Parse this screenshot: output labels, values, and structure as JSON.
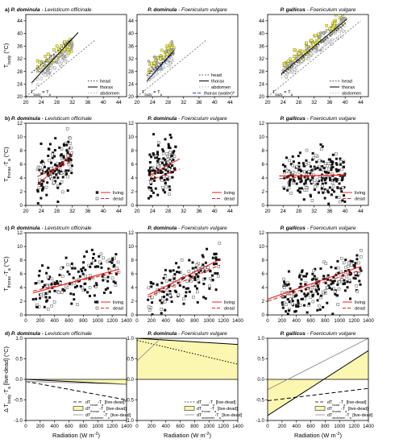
{
  "figure": {
    "rows": [
      {
        "letter": "a)",
        "ylabel_main": "T",
        "ylabel_sub": "body",
        "ylabel_tail": " (°C)"
      },
      {
        "letter": "b)",
        "ylabel_main": "T",
        "ylabel_sub": "thorax",
        "ylabel_tail": "-T",
        "ylabel_sub2": "a",
        "ylabel_tail2": " (°C)"
      },
      {
        "letter": "c)",
        "ylabel_main": "T",
        "ylabel_sub": "thorax",
        "ylabel_tail": "-T",
        "ylabel_sub2": "a",
        "ylabel_tail2": " (°C)"
      },
      {
        "letter": "d)",
        "ylabel_main": "Δ T",
        "ylabel_sub": "body",
        "ylabel_tail": "-T",
        "ylabel_sub2": "a",
        "ylabel_tail2": " [live-dead] (°C)"
      }
    ],
    "columns": [
      {
        "species": "P. dominula",
        "plant": " - Levisticum officinale"
      },
      {
        "species": "P. dominula",
        "plant": " - Foeniculum vulgare"
      },
      {
        "species": "P. gallicus",
        "plant": " - Foeniculum vulgare"
      }
    ],
    "xlabel_radiation": "Radiation (W m",
    "xlabel_radiation_sup": "-2",
    "xlabel_radiation_end": ")",
    "equality_label": "T",
    "equality_sub": "body",
    "equality_tail": " = T",
    "equality_sub2": "a"
  },
  "legends": {
    "a": [
      {
        "key": "head",
        "label": "head"
      },
      {
        "key": "thorax",
        "label": "thorax"
      },
      {
        "key": "abdomen",
        "label": "abdomen"
      },
      {
        "key": "water",
        "label": "thorax (water)*"
      }
    ],
    "bc": [
      {
        "key": "living",
        "label": "living"
      },
      {
        "key": "dead",
        "label": "dead"
      }
    ],
    "d": [
      {
        "key": "dhead",
        "main": "dT",
        "sub": "head",
        "tail": "-T",
        "sub2": "a",
        "end": " [live-dead]",
        "star": "*"
      },
      {
        "key": "dthorax",
        "main": "dT",
        "sub": "thorax",
        "tail": "-T",
        "sub2": "a",
        "end": " [live-dead]",
        "star": ""
      },
      {
        "key": "dabdomen",
        "main": "dT",
        "sub": "abdomen",
        "tail": "-T",
        "sub2": "a",
        "end": " [live-dead]",
        "star": ""
      }
    ]
  },
  "colors": {
    "thorax_fill": "#f2ee5a",
    "thorax_edge": "#7a7a20",
    "fit_red": "#e8211d",
    "water_blue": "#2a3fd6",
    "shade": "#fbf7b0",
    "abdomen_gray": "#999999"
  },
  "chart_data": [
    {
      "panel": "a",
      "type": "scatter",
      "title": "P. dominula - Levisticum officinale",
      "xlim": [
        20,
        46
      ],
      "ylim": [
        20,
        46
      ],
      "xticks": [
        20,
        24,
        28,
        32,
        36,
        40,
        44
      ],
      "yticks": [
        20,
        24,
        28,
        32,
        36,
        40,
        44
      ],
      "series": [
        {
          "name": "head",
          "style": "dotted",
          "fit": [
            [
              21.5,
              27.6
            ],
            [
              32.5,
              38.9
            ]
          ]
        },
        {
          "name": "thorax",
          "style": "solid",
          "fit": [
            [
              21.5,
              24.4
            ],
            [
              33.5,
              40.3
            ]
          ]
        },
        {
          "name": "abdomen",
          "style": "dotted",
          "fit": [
            [
              21.5,
              23.9
            ],
            [
              32.5,
              36.8
            ]
          ]
        }
      ],
      "equality": [
        [
          20,
          20
        ],
        [
          38,
          38
        ]
      ],
      "cloud": {
        "x": [
          23,
          32
        ],
        "offset": 4.5,
        "spread": 2.4,
        "n": 140
      }
    },
    {
      "panel": "a",
      "type": "scatter",
      "title": "P. dominula - Foeniculum vulgare",
      "xlim": [
        20,
        46
      ],
      "ylim": [
        20,
        46
      ],
      "xticks": [
        20,
        24,
        28,
        32,
        36,
        40,
        44
      ],
      "yticks": [
        20,
        24,
        28,
        32,
        36,
        40,
        44
      ],
      "series": [
        {
          "name": "head",
          "style": "dotted",
          "fit": [
            [
              22.5,
              26.7
            ],
            [
              29.5,
              33.8
            ]
          ]
        },
        {
          "name": "thorax",
          "style": "solid",
          "fit": [
            [
              22.5,
              24.9
            ],
            [
              29.5,
              34.6
            ]
          ]
        },
        {
          "name": "abdomen",
          "style": "dotted",
          "fit": [
            [
              22.5,
              24.4
            ],
            [
              29.5,
              31.2
            ]
          ]
        },
        {
          "name": "thorax (water)*",
          "style": "dashed",
          "fit": [
            [
              22.5,
              24.9
            ],
            [
              29.5,
              34.1
            ]
          ]
        }
      ],
      "equality": [
        [
          20,
          20
        ],
        [
          38,
          38
        ]
      ],
      "cloud": {
        "x": [
          23,
          29.5
        ],
        "offset": 5.2,
        "spread": 2.0,
        "n": 130
      }
    },
    {
      "panel": "a",
      "type": "scatter",
      "title": "P. gallicus - Foeniculum vulgare",
      "xlim": [
        20,
        46
      ],
      "ylim": [
        20,
        46
      ],
      "xticks": [
        20,
        24,
        28,
        32,
        36,
        40,
        44
      ],
      "yticks": [
        20,
        24,
        28,
        32,
        36,
        40,
        44
      ],
      "series": [
        {
          "name": "head",
          "style": "dotted",
          "fit": [
            [
              23.5,
              26.8
            ],
            [
              40.5,
              43.7
            ]
          ]
        },
        {
          "name": "thorax",
          "style": "solid",
          "fit": [
            [
              23.5,
              27.2
            ],
            [
              40.5,
              44.6
            ]
          ]
        },
        {
          "name": "abdomen",
          "style": "dotted",
          "fit": [
            [
              23.5,
              25.9
            ],
            [
              40.5,
              41.2
            ]
          ]
        }
      ],
      "equality": [
        [
          20,
          20
        ],
        [
          44,
          44
        ]
      ],
      "cloud": {
        "x": [
          24,
          40
        ],
        "offset": 4.2,
        "spread": 2.0,
        "n": 220
      }
    },
    {
      "panel": "b",
      "type": "scatter",
      "title": "P. dominula - Levisticum officinale",
      "xlim": [
        20,
        46
      ],
      "ylim": [
        0,
        12
      ],
      "xticks": [
        20,
        24,
        28,
        32,
        36,
        40,
        44
      ],
      "yticks": [
        0,
        2,
        4,
        6,
        8,
        10,
        12
      ],
      "series": [
        {
          "name": "living",
          "style": "solid",
          "fit": [
            [
              23,
              3.0
            ],
            [
              32,
              7.5
            ]
          ]
        },
        {
          "name": "dead",
          "style": "dashed",
          "fit": [
            [
              23,
              4.2
            ],
            [
              32,
              6.5
            ]
          ]
        }
      ],
      "cloud": {
        "x": [
          23,
          32
        ],
        "slope": 0.5,
        "y0": 3.0,
        "spread": 1.8,
        "n": 150
      }
    },
    {
      "panel": "b",
      "type": "scatter",
      "title": "P. dominula - Foeniculum vulgare",
      "xlim": [
        20,
        46
      ],
      "ylim": [
        0,
        12
      ],
      "xticks": [
        20,
        24,
        28,
        32,
        36,
        40,
        44
      ],
      "yticks": [
        0,
        2,
        4,
        6,
        8,
        10,
        12
      ],
      "series": [
        {
          "name": "living",
          "style": "solid",
          "fit": [
            [
              23,
              4.3
            ],
            [
              31,
              6.8
            ]
          ]
        },
        {
          "name": "dead",
          "style": "dashed",
          "fit": [
            [
              23,
              3.6
            ],
            [
              31,
              5.3
            ]
          ]
        }
      ],
      "cloud": {
        "x": [
          23,
          30
        ],
        "slope": 0.32,
        "y0": 4.3,
        "spread": 1.8,
        "n": 150
      }
    },
    {
      "panel": "b",
      "type": "scatter",
      "title": "P. gallicus - Foeniculum vulgare",
      "xlim": [
        20,
        46
      ],
      "ylim": [
        0,
        12
      ],
      "xticks": [
        20,
        24,
        28,
        32,
        36,
        40,
        44
      ],
      "yticks": [
        0,
        2,
        4,
        6,
        8,
        10,
        12
      ],
      "series": [
        {
          "name": "living",
          "style": "solid",
          "fit": [
            [
              23,
              4.3
            ],
            [
              40,
              4.4
            ]
          ]
        },
        {
          "name": "dead",
          "style": "dashed",
          "fit": [
            [
              23,
              3.9
            ],
            [
              40,
              4.6
            ]
          ]
        }
      ],
      "cloud": {
        "x": [
          24,
          40
        ],
        "slope": 0.0,
        "y0": 4.3,
        "spread": 1.8,
        "n": 240
      }
    },
    {
      "panel": "c",
      "type": "scatter",
      "title": "P. dominula - Levisticum officinale",
      "xlim": [
        0,
        1400
      ],
      "ylim": [
        0,
        12
      ],
      "xticks": [
        0,
        200,
        400,
        600,
        800,
        1000,
        1200,
        1400
      ],
      "yticks": [
        0,
        2,
        4,
        6,
        8,
        10,
        12
      ],
      "series": [
        {
          "name": "living",
          "style": "solid",
          "fit": [
            [
              100,
              3.2
            ],
            [
              1300,
              6.7
            ]
          ]
        },
        {
          "name": "dead",
          "style": "dashed",
          "fit": [
            [
              100,
              3.5
            ],
            [
              1300,
              6.3
            ]
          ]
        }
      ],
      "cloud": {
        "x": [
          100,
          1300
        ],
        "slope": 0.0029,
        "y0": 3.0,
        "spread": 1.8,
        "n": 170
      }
    },
    {
      "panel": "c",
      "type": "scatter",
      "title": "P. dominula - Foeniculum vulgare",
      "xlim": [
        0,
        1400
      ],
      "ylim": [
        0,
        12
      ],
      "xticks": [
        0,
        200,
        400,
        600,
        800,
        1000,
        1200,
        1400
      ],
      "yticks": [
        0,
        2,
        4,
        6,
        8,
        10,
        12
      ],
      "series": [
        {
          "name": "living",
          "style": "solid",
          "fit": [
            [
              150,
              2.9
            ],
            [
              1150,
              8.1
            ]
          ]
        },
        {
          "name": "dead",
          "style": "dashed",
          "fit": [
            [
              150,
              2.6
            ],
            [
              1150,
              7.3
            ]
          ]
        }
      ],
      "cloud": {
        "x": [
          150,
          1150
        ],
        "slope": 0.005,
        "y0": 2.3,
        "spread": 1.5,
        "n": 170
      }
    },
    {
      "panel": "c",
      "type": "scatter",
      "title": "P. gallicus - Foeniculum vulgare",
      "xlim": [
        0,
        1400
      ],
      "ylim": [
        0,
        12
      ],
      "xticks": [
        0,
        200,
        400,
        600,
        800,
        1000,
        1200,
        1400
      ],
      "yticks": [
        0,
        2,
        4,
        6,
        8,
        10,
        12
      ],
      "series": [
        {
          "name": "living",
          "style": "solid",
          "fit": [
            [
              0,
              2.3
            ],
            [
              1300,
              7.1
            ]
          ]
        },
        {
          "name": "dead",
          "style": "dashed",
          "fit": [
            [
              0,
              2.0
            ],
            [
              1300,
              6.6
            ]
          ]
        }
      ],
      "cloud": {
        "x": [
          200,
          1300
        ],
        "slope": 0.0036,
        "y0": 2.3,
        "spread": 1.6,
        "n": 230
      }
    },
    {
      "panel": "d",
      "type": "line",
      "title": "P. dominula - Levisticum officinale",
      "xlim": [
        0,
        1400
      ],
      "ylim": [
        -1.0,
        1.0
      ],
      "xticks": [
        0,
        200,
        400,
        600,
        800,
        1000,
        1200,
        1400
      ],
      "yticks": [
        -1.0,
        -0.5,
        0.0,
        0.5,
        1.0
      ],
      "series": [
        {
          "name": "dThead-Ta [live-dead]*",
          "style": "dashed",
          "values": [
            [
              0,
              -0.05
            ],
            [
              1400,
              -0.5
            ]
          ]
        },
        {
          "name": "dTthorax-Ta [live-dead]",
          "style": "solid",
          "values": [
            [
              0,
              0.0
            ],
            [
              1400,
              -0.12
            ]
          ]
        },
        {
          "name": "dTabdomen-Ta [live-dead]",
          "style": "thin",
          "values": [
            [
              0,
              -0.05
            ],
            [
              1400,
              -0.12
            ]
          ]
        }
      ],
      "shade_between": [
        "dTthorax-Ta [live-dead]",
        0
      ]
    },
    {
      "panel": "d",
      "type": "line",
      "title": "P. dominula - Foeniculum vulgare",
      "xlim": [
        0,
        1400
      ],
      "ylim": [
        -1.0,
        1.0
      ],
      "xticks": [
        0,
        200,
        400,
        600,
        800,
        1000,
        1200,
        1400
      ],
      "yticks": [
        -1.0,
        -0.5,
        0.0,
        0.5,
        1.0
      ],
      "series": [
        {
          "name": "dThead-Ta [live-dead]",
          "style": "dotted",
          "values": [
            [
              0,
              0.95
            ],
            [
              1400,
              0.37
            ]
          ]
        },
        {
          "name": "dTthorax-Ta [live-dead]",
          "style": "solid",
          "values": [
            [
              0,
              1.0
            ],
            [
              1400,
              0.85
            ]
          ]
        },
        {
          "name": "dTabdomen-Ta [live-dead]",
          "style": "thin",
          "values": [
            [
              0,
              0.45
            ],
            [
              330,
              1.0
            ]
          ]
        }
      ],
      "shade_between": [
        "dTthorax-Ta [live-dead]",
        0
      ]
    },
    {
      "panel": "d",
      "type": "line",
      "title": "P. gallicus - Foeniculum vulgare",
      "xlim": [
        0,
        1400
      ],
      "ylim": [
        -1.0,
        1.0
      ],
      "xticks": [
        0,
        200,
        400,
        600,
        800,
        1000,
        1200,
        1400
      ],
      "yticks": [
        -1.0,
        -0.5,
        0.0,
        0.5,
        1.0
      ],
      "series": [
        {
          "name": "dThead-Ta [live-dead]",
          "style": "dashed",
          "values": [
            [
              0,
              -0.52
            ],
            [
              1400,
              -0.22
            ]
          ]
        },
        {
          "name": "dTthorax-Ta [live-dead]",
          "style": "solid",
          "values": [
            [
              0,
              -0.88
            ],
            [
              1400,
              0.7
            ]
          ]
        },
        {
          "name": "dTabdomen-Ta [live-dead]",
          "style": "thin",
          "values": [
            [
              0,
              -0.25
            ],
            [
              1400,
              1.0
            ]
          ]
        }
      ],
      "shade_between": [
        "dTthorax-Ta [live-dead]",
        0
      ]
    }
  ]
}
